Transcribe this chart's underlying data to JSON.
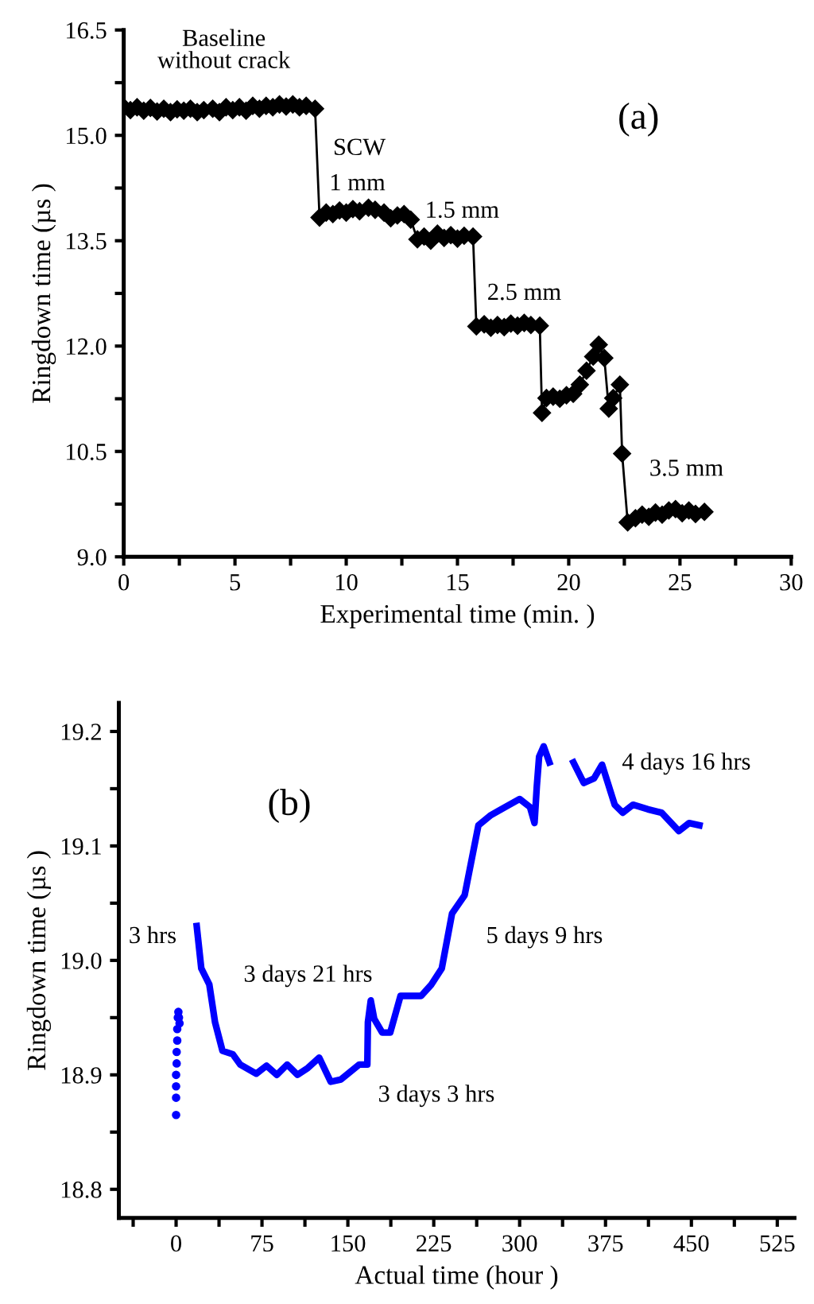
{
  "chart_data": [
    {
      "type": "line",
      "title": "(a)",
      "xlabel": "Experimental time (min. )",
      "ylabel": "Ringdown time (µs )",
      "xlim": [
        0,
        30
      ],
      "ylim": [
        9.0,
        16.5
      ],
      "xticks": [
        0,
        {
          "value": 2.5,
          "label": null
        },
        5,
        {
          "value": 7.5,
          "label": null
        },
        10,
        {
          "value": 12.5,
          "label": null
        },
        15,
        {
          "value": 17.5,
          "label": null
        },
        20,
        {
          "value": 22.5,
          "label": null
        },
        25,
        {
          "value": 27.5,
          "label": null
        },
        30
      ],
      "yticks": [
        {
          "value": 9.0,
          "label": "9.0"
        },
        {
          "value": 9.75,
          "label": null
        },
        10.5,
        {
          "value": 11.25,
          "label": null
        },
        {
          "value": 12.0,
          "label": "12.0"
        },
        {
          "value": 12.75,
          "label": null
        },
        13.5,
        {
          "value": 14.25,
          "label": null
        },
        {
          "value": 15.0,
          "label": "15.0"
        },
        {
          "value": 15.75,
          "label": null
        },
        16.5
      ],
      "grid": false,
      "legend": false,
      "marker": "diamond",
      "line_style": "solid",
      "series": [
        {
          "color": "#000000",
          "x": [
            0,
            0.3,
            0.6,
            0.9,
            1.2,
            1.5,
            1.8,
            2.1,
            2.4,
            2.7,
            3.0,
            3.3,
            3.6,
            4.0,
            4.3,
            4.6,
            4.9,
            5.2,
            5.5,
            5.8,
            6.1,
            6.4,
            6.7,
            7.0,
            7.3,
            7.6,
            7.9,
            8.2,
            8.6,
            8.8,
            9.1,
            9.4,
            9.7,
            10.0,
            10.3,
            10.6,
            11.0,
            11.3,
            11.7,
            12.0,
            12.3,
            12.6,
            12.9,
            13.2,
            13.5,
            13.8,
            14.1,
            14.4,
            14.7,
            15.0,
            15.3,
            15.7,
            15.85,
            16.2,
            16.5,
            16.8,
            17.1,
            17.4,
            17.7,
            18.0,
            18.3,
            18.7,
            18.8,
            19.0,
            19.3,
            19.6,
            19.9,
            20.2,
            20.5,
            20.8,
            21.1,
            21.35,
            21.6,
            21.8,
            22.0,
            22.3,
            22.4,
            22.65,
            23.0,
            23.3,
            23.6,
            23.9,
            24.2,
            24.5,
            24.8,
            25.1,
            25.4,
            25.7,
            26.1
          ],
          "values": [
            15.4,
            15.36,
            15.4,
            15.35,
            15.39,
            15.34,
            15.38,
            15.33,
            15.37,
            15.35,
            15.38,
            15.33,
            15.36,
            15.38,
            15.33,
            15.4,
            15.36,
            15.4,
            15.35,
            15.42,
            15.38,
            15.42,
            15.4,
            15.44,
            15.41,
            15.44,
            15.4,
            15.42,
            15.38,
            13.83,
            13.9,
            13.88,
            13.93,
            13.9,
            13.95,
            13.92,
            13.97,
            13.94,
            13.9,
            13.82,
            13.86,
            13.88,
            13.8,
            13.52,
            13.56,
            13.5,
            13.6,
            13.54,
            13.58,
            13.53,
            13.57,
            13.56,
            12.28,
            12.31,
            12.26,
            12.3,
            12.27,
            12.32,
            12.29,
            12.33,
            12.3,
            12.29,
            11.05,
            11.26,
            11.28,
            11.25,
            11.3,
            11.32,
            11.45,
            11.65,
            11.85,
            12.02,
            11.83,
            11.11,
            11.26,
            11.45,
            10.47,
            9.49,
            9.55,
            9.6,
            9.57,
            9.63,
            9.6,
            9.66,
            9.68,
            9.62,
            9.66,
            9.61,
            9.64
          ]
        }
      ],
      "annotations": [
        "Baseline\nwithout crack",
        "SCW",
        "1 mm",
        "1.5 mm",
        "2.5 mm",
        "3.5 mm"
      ]
    },
    {
      "type": "line",
      "title": "(b)",
      "xlabel": "Actual time (hour )",
      "ylabel": "Ringdown time (µs )",
      "xlim": [
        -50,
        540
      ],
      "ylim": [
        18.775,
        19.225
      ],
      "xticks": [
        {
          "value": -37.5,
          "label": null
        },
        0,
        {
          "value": 37.5,
          "label": null
        },
        75,
        {
          "value": 112.5,
          "label": null
        },
        150,
        {
          "value": 187.5,
          "label": null
        },
        225,
        {
          "value": 262.5,
          "label": null
        },
        300,
        {
          "value": 337.5,
          "label": null
        },
        375,
        {
          "value": 412.5,
          "label": null
        },
        450,
        {
          "value": 487.5,
          "label": null
        },
        525
      ],
      "yticks": [
        18.8,
        {
          "value": 18.85,
          "label": null
        },
        18.9,
        {
          "value": 18.95,
          "label": null
        },
        {
          "value": 19.0,
          "label": "19.0"
        },
        {
          "value": 19.05,
          "label": null
        },
        19.1,
        {
          "value": 19.15,
          "label": null
        },
        19.2
      ],
      "grid": false,
      "legend": false,
      "line_style": "solid",
      "series": [
        {
          "type": "scatter",
          "marker": "circle",
          "color": "#0000ff",
          "x": [
            0,
            0,
            0,
            0,
            0.5,
            0.5,
            1,
            1,
            1.5,
            2,
            2.5,
            3
          ],
          "values": [
            18.865,
            18.88,
            18.89,
            18.9,
            18.91,
            18.92,
            18.93,
            18.94,
            18.95,
            18.955,
            18.95,
            18.945
          ]
        },
        {
          "type": "line",
          "marker": "none",
          "color": "#0000ff",
          "x": [
            18,
            22,
            29,
            34,
            40.5,
            49.5,
            56,
            70,
            79,
            88,
            97,
            106,
            115,
            125,
            135,
            144,
            160,
            167,
            167.5,
            170,
            173,
            180,
            187,
            196,
            205,
            214,
            223,
            232,
            241,
            252,
            264,
            275,
            291,
            300,
            309,
            313,
            315,
            317,
            321,
            326,
            336,
            347,
            356,
            365,
            372,
            383,
            390,
            399,
            412,
            424,
            439,
            448,
            457
          ],
          "values": [
            19.03,
            18.993,
            18.979,
            18.946,
            18.921,
            18.918,
            18.909,
            18.901,
            18.908,
            18.9,
            18.909,
            18.9,
            18.906,
            18.915,
            18.894,
            18.896,
            18.909,
            18.909,
            18.946,
            18.965,
            18.949,
            18.937,
            18.937,
            18.969,
            18.969,
            18.969,
            18.979,
            18.993,
            19.041,
            19.057,
            19.118,
            19.127,
            19.136,
            19.141,
            19.134,
            19.12,
            19.152,
            19.178,
            19.187,
            19.173,
            null,
            19.173,
            19.155,
            19.159,
            19.171,
            19.136,
            19.129,
            19.136,
            19.132,
            19.129,
            19.113,
            19.12,
            19.118
          ]
        }
      ],
      "annotations": [
        "3 hrs",
        "3 days 21 hrs",
        "3 days 3 hrs",
        "5 days 9 hrs",
        "4 days 16 hrs"
      ]
    }
  ]
}
